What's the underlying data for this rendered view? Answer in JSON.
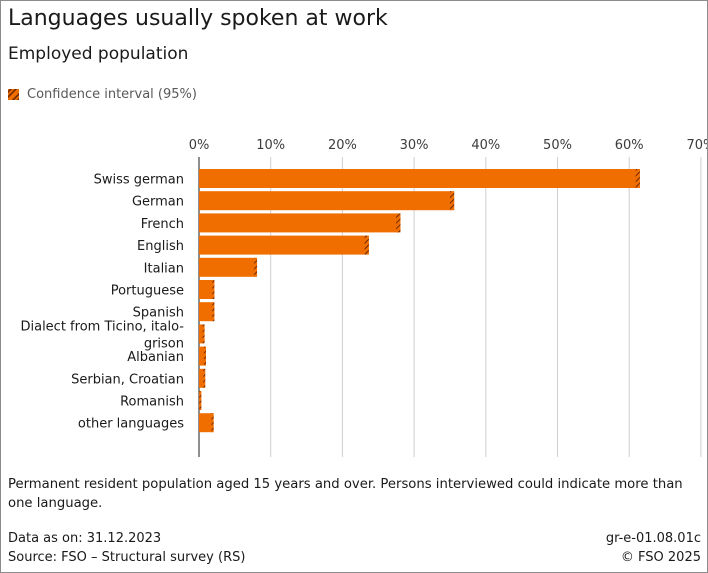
{
  "header": {
    "title": "Languages usually spoken at work",
    "subtitle": "Employed population"
  },
  "legend": {
    "label": "Confidence interval (95%)",
    "icon": "hatch-icon"
  },
  "colors": {
    "bar": "#f06e00",
    "ci": "#6e2a00",
    "grid": "#cfcfcf",
    "axis": "#444444"
  },
  "chart_data": {
    "type": "bar",
    "orientation": "horizontal",
    "title": "Languages usually spoken at work",
    "subtitle": "Employed population",
    "xlabel": "",
    "ylabel": "",
    "xlim": [
      0,
      70
    ],
    "tick_values": [
      0,
      10,
      20,
      30,
      40,
      50,
      60,
      70
    ],
    "tick_labels": [
      "0%",
      "10%",
      "20%",
      "30%",
      "40%",
      "50%",
      "60%",
      "70%"
    ],
    "categories": [
      "Swiss german",
      "German",
      "French",
      "English",
      "Italian",
      "Portuguese",
      "Spanish",
      "Dialect from Ticino, italo-grison",
      "Albanian",
      "Serbian, Croatian",
      "Romanish",
      "other languages"
    ],
    "category_lines": [
      [
        "Swiss german"
      ],
      [
        "German"
      ],
      [
        "French"
      ],
      [
        "English"
      ],
      [
        "Italian"
      ],
      [
        "Portuguese"
      ],
      [
        "Spanish"
      ],
      [
        "Dialect from Ticino, italo-",
        "grison"
      ],
      [
        "Albanian"
      ],
      [
        "Serbian, Croatian"
      ],
      [
        "Romanish"
      ],
      [
        "other languages"
      ]
    ],
    "values": [
      61.2,
      35.3,
      27.8,
      23.4,
      7.9,
      2.0,
      2.0,
      0.6,
      0.8,
      0.7,
      0.1,
      1.9
    ],
    "ci_half_width": [
      0.3,
      0.3,
      0.3,
      0.3,
      0.2,
      0.15,
      0.15,
      0.1,
      0.1,
      0.1,
      0.05,
      0.15
    ],
    "grid": true,
    "legend_position": "top-left"
  },
  "footer": {
    "note": "Permanent resident population aged 15 years and over. Persons interviewed could indicate more than one language.",
    "data_as_on": "Data as on: 31.12.2023",
    "source": "Source: FSO – Structural survey (RS)",
    "code": "gr-e-01.08.01c",
    "copyright": "© FSO 2025"
  }
}
